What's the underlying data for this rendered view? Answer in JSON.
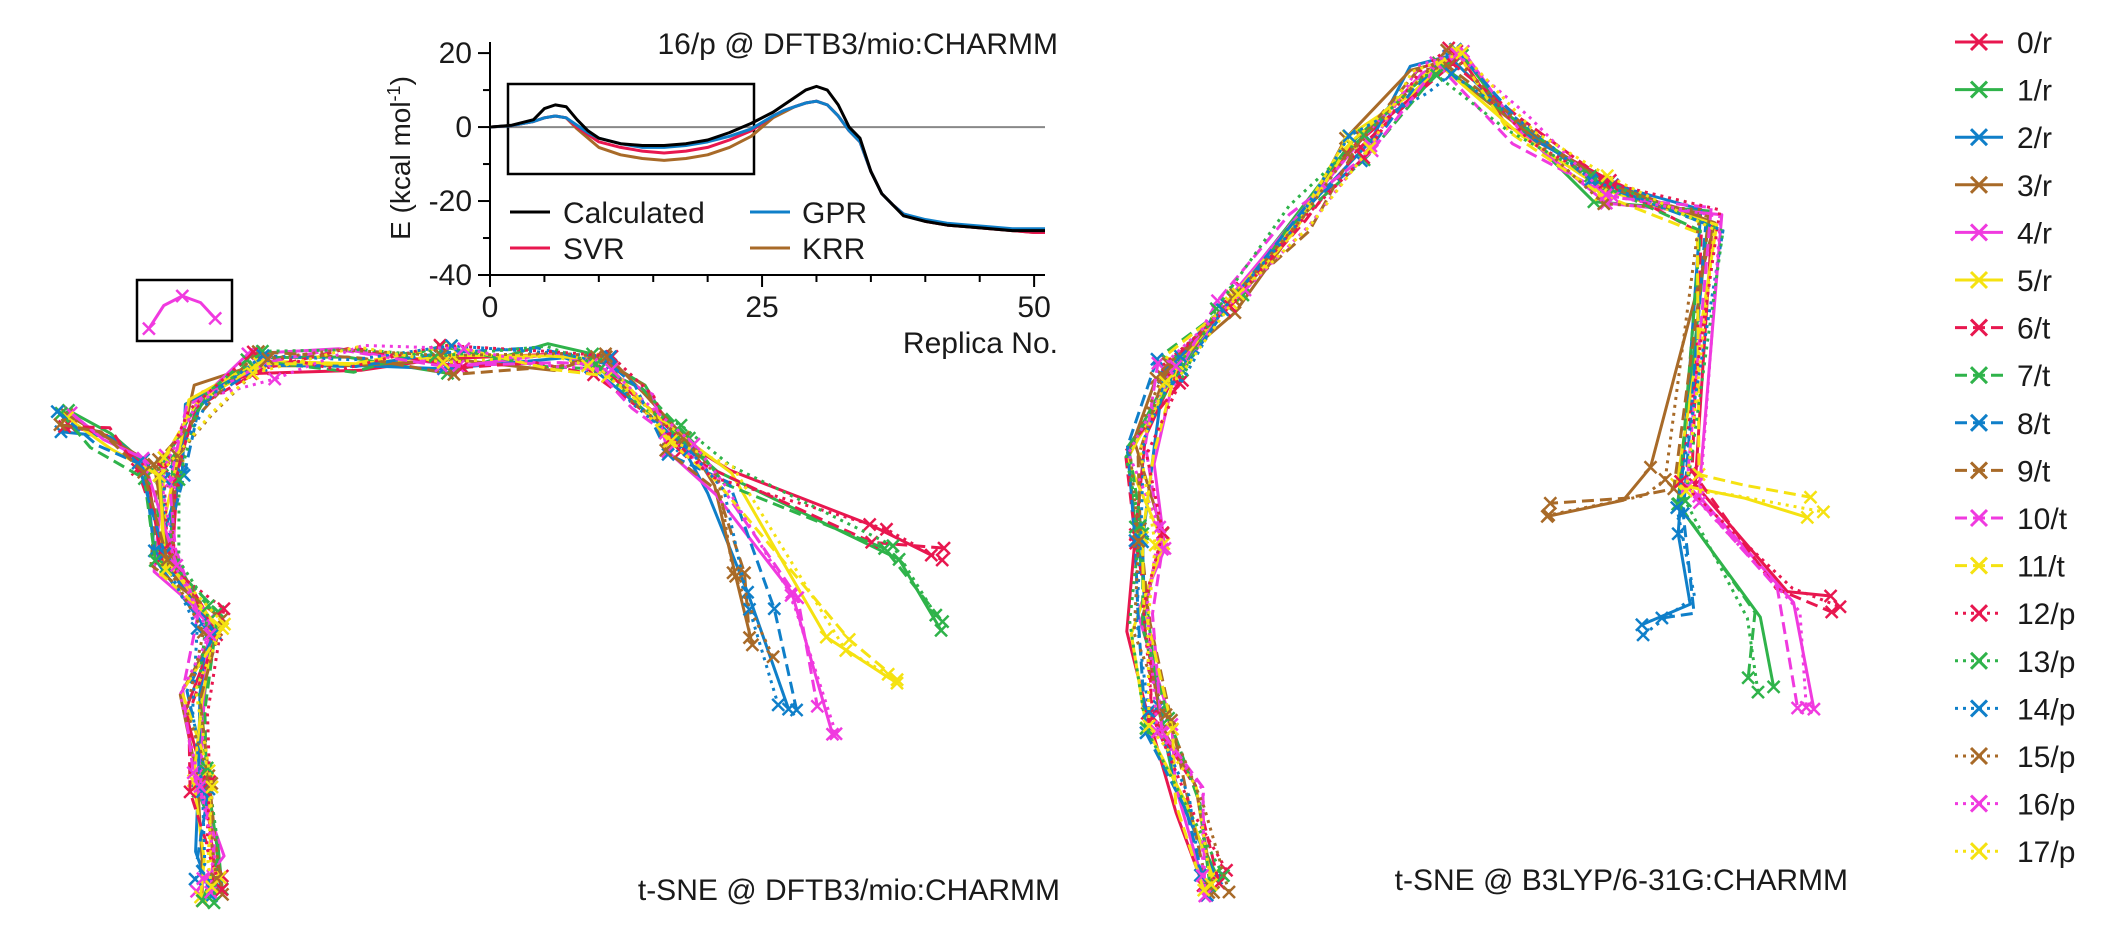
{
  "colors": {
    "red": "#e8174f",
    "green": "#2fb34a",
    "blue": "#0f7fc9",
    "brown": "#a86a28",
    "magenta": "#f03adf",
    "yellow": "#f5e211",
    "black": "#000000",
    "zero_line": "#888888"
  },
  "chart_data": [
    {
      "type": "line",
      "title": "16/p @ DFTB3/mio:CHARMM",
      "xlabel": "Replica No.",
      "ylabel": "E (kcal mol",
      "ylabel_sup": "-1",
      "ylabel_close": ")",
      "xlim": [
        0,
        51
      ],
      "ylim": [
        -40,
        23
      ],
      "xticks": [
        "0",
        "25",
        "50"
      ],
      "yticks": [
        "20",
        "0",
        "-20",
        "-40"
      ],
      "zero_line": true,
      "legend_position": "lower-left",
      "series": [
        {
          "name": "Calculated",
          "color_key": "black",
          "x": [
            0,
            2,
            4,
            5,
            6,
            7,
            8,
            9,
            10,
            12,
            14,
            16,
            18,
            20,
            22,
            24,
            26,
            27,
            28,
            29,
            30,
            31,
            32,
            33,
            34,
            35,
            36,
            37,
            38,
            40,
            42,
            44,
            46,
            48,
            50,
            51
          ],
          "y": [
            0,
            0.5,
            2,
            5,
            6,
            5.5,
            2,
            -1,
            -3,
            -4.5,
            -5,
            -5,
            -4.5,
            -3.5,
            -1.5,
            1,
            4,
            6,
            8,
            10,
            11,
            10,
            6,
            0,
            -3,
            -12,
            -18,
            -21,
            -24,
            -25.5,
            -26.5,
            -27,
            -27.5,
            -28,
            -28,
            -28
          ]
        },
        {
          "name": "SVR",
          "color_key": "red",
          "x": [
            0,
            2,
            4,
            5,
            6,
            7,
            8,
            9,
            10,
            12,
            14,
            16,
            18,
            20,
            22,
            24,
            26,
            27,
            28,
            29,
            30,
            31,
            32,
            33,
            34,
            35,
            36,
            37,
            38,
            40,
            42,
            44,
            46,
            48,
            50,
            51
          ],
          "y": [
            0,
            0.4,
            1.5,
            2.5,
            3,
            2.5,
            0,
            -2,
            -4,
            -5.5,
            -6.5,
            -7,
            -6.5,
            -5.5,
            -3.5,
            -1,
            3,
            4.5,
            5.5,
            6.5,
            7,
            6,
            3,
            -1,
            -4,
            -12,
            -18,
            -21,
            -23.5,
            -25.5,
            -26.5,
            -27,
            -27.5,
            -28,
            -28.5,
            -28.5
          ]
        },
        {
          "name": "GPR",
          "color_key": "blue",
          "x": [
            0,
            2,
            4,
            5,
            6,
            7,
            8,
            9,
            10,
            12,
            14,
            16,
            18,
            20,
            22,
            24,
            26,
            27,
            28,
            29,
            30,
            31,
            32,
            33,
            34,
            35,
            36,
            37,
            38,
            40,
            42,
            44,
            46,
            48,
            50,
            51
          ],
          "y": [
            0,
            0.4,
            1.5,
            2.5,
            3,
            2.5,
            0.5,
            -1.5,
            -3,
            -4.5,
            -5.5,
            -5.5,
            -5,
            -4,
            -2.5,
            -0.5,
            3,
            4.5,
            5.5,
            6.5,
            7,
            6,
            3,
            -1,
            -4,
            -12,
            -18,
            -21,
            -23.5,
            -25,
            -26,
            -26.5,
            -27,
            -27.5,
            -27.5,
            -27.5
          ]
        },
        {
          "name": "KRR",
          "color_key": "brown",
          "x": [
            0,
            2,
            4,
            5,
            6,
            7,
            8,
            9,
            10,
            12,
            14,
            16,
            18,
            20,
            22,
            24,
            26,
            27,
            28,
            29,
            30,
            31,
            32,
            33,
            34,
            35,
            36,
            37,
            38,
            40,
            42,
            44,
            46,
            48,
            50,
            51
          ],
          "y": [
            0,
            0.4,
            1.5,
            2.5,
            3,
            2.5,
            -0.5,
            -3,
            -5.5,
            -7.5,
            -8.5,
            -9,
            -8.5,
            -7.5,
            -5.5,
            -2.5,
            2.5,
            4,
            5.5,
            6.5,
            7,
            6,
            3,
            -1,
            -4,
            -12,
            -18,
            -21,
            -23.5,
            -25.5,
            -26.5,
            -27,
            -27.5,
            -28,
            -28.5,
            -28.5
          ]
        }
      ]
    },
    {
      "type": "scatter",
      "title": "t-SNE @ DFTB3/mio:CHARMM",
      "xlabel": "",
      "ylabel": "",
      "series_names": [
        "0/r",
        "1/r",
        "2/r",
        "3/r",
        "4/r",
        "5/r",
        "6/t",
        "7/t",
        "8/t",
        "9/t",
        "10/t",
        "11/t",
        "12/p",
        "13/p",
        "14/p",
        "15/p",
        "16/p",
        "17/p"
      ]
    },
    {
      "type": "scatter",
      "title": "t-SNE @ B3LYP/6-31G:CHARMM",
      "xlabel": "",
      "ylabel": "",
      "series_names": [
        "0/r",
        "1/r",
        "2/r",
        "3/r",
        "4/r",
        "5/r",
        "6/t",
        "7/t",
        "8/t",
        "9/t",
        "10/t",
        "11/t",
        "12/p",
        "13/p",
        "14/p",
        "15/p",
        "16/p",
        "17/p"
      ]
    }
  ],
  "legend": {
    "items": [
      {
        "label": "0/r",
        "color": "red",
        "dash": "solid"
      },
      {
        "label": "1/r",
        "color": "green",
        "dash": "solid"
      },
      {
        "label": "2/r",
        "color": "blue",
        "dash": "solid"
      },
      {
        "label": "3/r",
        "color": "brown",
        "dash": "solid"
      },
      {
        "label": "4/r",
        "color": "magenta",
        "dash": "solid"
      },
      {
        "label": "5/r",
        "color": "yellow",
        "dash": "solid"
      },
      {
        "label": "6/t",
        "color": "red",
        "dash": "dashed"
      },
      {
        "label": "7/t",
        "color": "green",
        "dash": "dashed"
      },
      {
        "label": "8/t",
        "color": "blue",
        "dash": "dashed"
      },
      {
        "label": "9/t",
        "color": "brown",
        "dash": "dashed"
      },
      {
        "label": "10/t",
        "color": "magenta",
        "dash": "dashed"
      },
      {
        "label": "11/t",
        "color": "yellow",
        "dash": "dashed"
      },
      {
        "label": "12/p",
        "color": "red",
        "dash": "dotted"
      },
      {
        "label": "13/p",
        "color": "green",
        "dash": "dotted"
      },
      {
        "label": "14/p",
        "color": "blue",
        "dash": "dotted"
      },
      {
        "label": "15/p",
        "color": "brown",
        "dash": "dotted"
      },
      {
        "label": "16/p",
        "color": "magenta",
        "dash": "dotted"
      },
      {
        "label": "17/p",
        "color": "yellow",
        "dash": "dotted"
      }
    ]
  }
}
